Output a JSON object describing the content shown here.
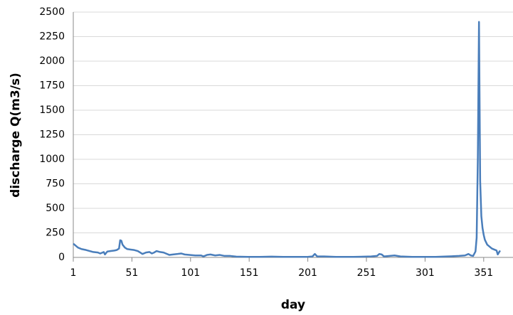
{
  "chart_data": {
    "type": "line",
    "x_label": "day",
    "y_label": "discharge Q(m3/s)",
    "x": [
      1,
      3,
      5,
      8,
      12,
      15,
      18,
      22,
      24,
      27,
      28,
      30,
      33,
      36,
      38,
      40,
      41,
      42,
      43,
      45,
      47,
      50,
      53,
      56,
      58,
      60,
      63,
      66,
      68,
      70,
      72,
      75,
      78,
      80,
      83,
      86,
      90,
      93,
      96,
      100,
      105,
      110,
      112,
      115,
      118,
      122,
      126,
      130,
      135,
      140,
      150,
      160,
      170,
      180,
      190,
      200,
      205,
      207,
      209,
      215,
      225,
      240,
      255,
      260,
      262,
      264,
      266,
      275,
      280,
      290,
      300,
      310,
      320,
      330,
      335,
      338,
      340,
      342,
      344,
      345,
      346,
      347,
      348,
      349,
      350,
      351,
      352,
      354,
      356,
      358,
      360,
      362,
      363,
      364,
      365
    ],
    "series": [
      {
        "name": "discharge",
        "color": "#4a7ebb",
        "values": [
          140,
          120,
          100,
          85,
          75,
          65,
          55,
          50,
          40,
          55,
          30,
          60,
          65,
          70,
          75,
          90,
          175,
          170,
          130,
          100,
          85,
          80,
          75,
          65,
          50,
          35,
          50,
          55,
          40,
          50,
          65,
          55,
          50,
          40,
          25,
          30,
          35,
          40,
          30,
          25,
          20,
          20,
          10,
          25,
          30,
          20,
          25,
          15,
          15,
          8,
          5,
          5,
          8,
          5,
          5,
          5,
          10,
          35,
          10,
          10,
          5,
          5,
          10,
          15,
          35,
          30,
          10,
          20,
          10,
          5,
          5,
          5,
          10,
          15,
          20,
          35,
          20,
          15,
          60,
          200,
          1000,
          2400,
          780,
          420,
          300,
          230,
          180,
          130,
          110,
          90,
          80,
          70,
          30,
          50,
          70
        ]
      }
    ],
    "xlim": [
      1,
      376
    ],
    "xticks": [
      1,
      51,
      101,
      151,
      201,
      251,
      301,
      351
    ],
    "ylim": [
      0,
      2500
    ],
    "yticks": [
      0,
      250,
      500,
      750,
      1000,
      1250,
      1500,
      1750,
      2000,
      2250,
      2500
    ],
    "grid": true
  }
}
